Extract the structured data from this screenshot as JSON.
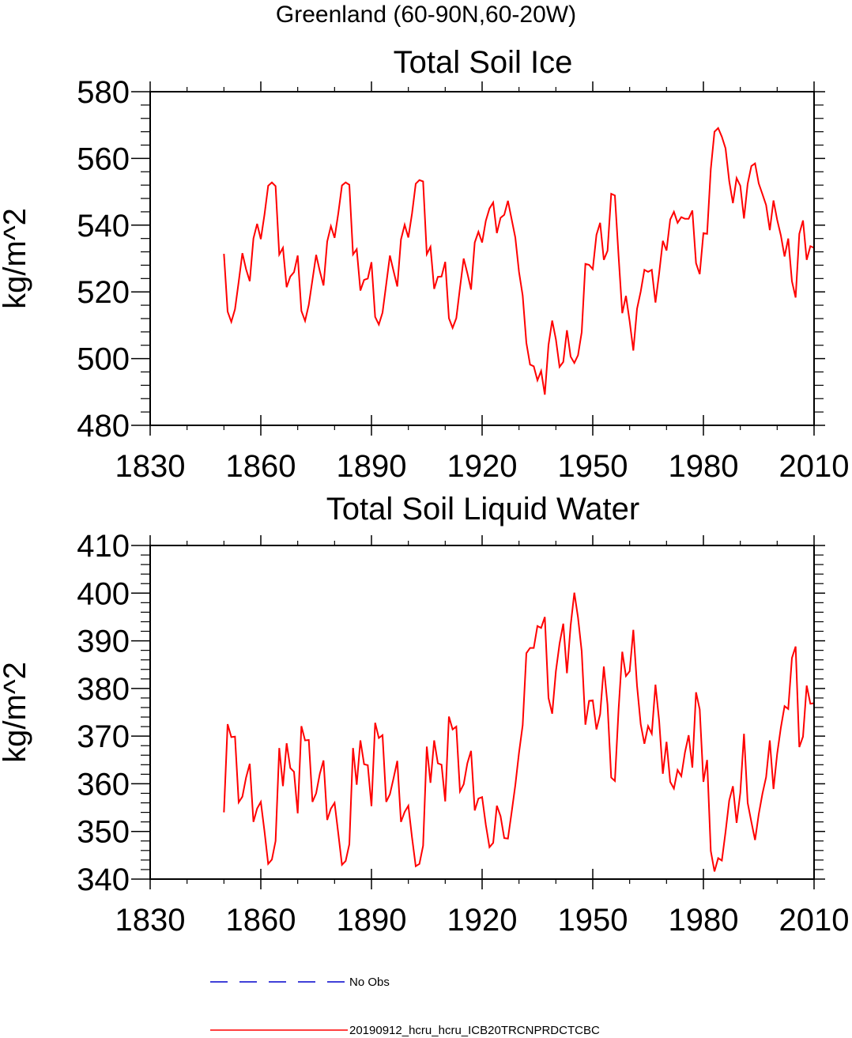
{
  "figure": {
    "title": "Greenland (60-90N,60-20W)"
  },
  "colors": {
    "series_line": "#ff0000",
    "obs_line": "#0000cc",
    "axis": "#000000"
  },
  "legend": {
    "entries": [
      {
        "label": "No Obs",
        "style": "dashed",
        "color": "#0000cc"
      },
      {
        "label": "20190912_hcru_hcru_ICB20TRCNPRDCTCBC",
        "style": "solid",
        "color": "#ff0000"
      }
    ]
  },
  "chart_data": [
    {
      "type": "line",
      "title": "Total Soil Ice",
      "xlabel": "",
      "ylabel": "kg/m^2",
      "xlim": [
        1830,
        2010
      ],
      "ylim": [
        480,
        580
      ],
      "xticks": [
        1830,
        1860,
        1890,
        1920,
        1950,
        1980,
        2010
      ],
      "xtick_labels": [
        "1830",
        "1860",
        "1890",
        "1920",
        "1950",
        "1980",
        "2010"
      ],
      "yticks": [
        480,
        500,
        520,
        540,
        560,
        580
      ],
      "ytick_labels": [
        "480",
        "500",
        "520",
        "540",
        "560",
        "580"
      ],
      "x_start": 1850,
      "series": [
        {
          "name": "20190912_hcru_hcru_ICB20TRCNPRDCTCBC",
          "values": [
            531.4,
            514.1,
            511.0,
            514.8,
            523.0,
            531.6,
            526.8,
            523.2,
            536.0,
            540.4,
            535.8,
            543.2,
            551.8,
            552.8,
            551.7,
            531.2,
            533.2,
            521.4,
            524.6,
            525.9,
            530.9,
            514.3,
            511.3,
            516.1,
            523.6,
            531.1,
            526.2,
            521.9,
            535.1,
            539.7,
            536.2,
            543.5,
            551.9,
            552.8,
            552.1,
            531.2,
            532.8,
            520.4,
            523.6,
            524.0,
            528.9,
            512.5,
            510.2,
            513.8,
            522.3,
            530.9,
            526.2,
            521.6,
            535.7,
            540.1,
            536.3,
            543.5,
            552.4,
            553.5,
            553.1,
            531.3,
            533.5,
            520.9,
            524.5,
            524.6,
            529.0,
            512.1,
            509.2,
            512.1,
            521.2,
            530.0,
            525.6,
            520.7,
            534.8,
            538.0,
            534.8,
            541.3,
            545.0,
            546.8,
            537.6,
            542.2,
            543.1,
            547.3,
            541.8,
            536.3,
            526.0,
            518.9,
            504.7,
            498.2,
            497.7,
            493.5,
            496.3,
            489.2,
            504.1,
            511.4,
            505.8,
            497.5,
            499.0,
            508.5,
            500.6,
            498.7,
            501.0,
            507.9,
            528.4,
            528.1,
            526.8,
            537.1,
            540.7,
            529.6,
            532.3,
            549.4,
            548.9,
            530.7,
            513.6,
            518.8,
            511.2,
            502.4,
            514.9,
            520.1,
            526.6,
            526.0,
            526.6,
            516.8,
            525.6,
            535.3,
            532.4,
            541.7,
            544.0,
            540.7,
            542.4,
            541.9,
            541.9,
            544.4,
            528.6,
            525.3,
            537.6,
            537.4,
            556.8,
            568.0,
            569.1,
            566.5,
            563.0,
            553.2,
            546.6,
            554.1,
            551.8,
            542.0,
            552.4,
            557.7,
            558.5,
            552.5,
            549.3,
            546.0,
            538.5,
            547.4,
            541.6,
            536.9,
            530.6,
            536.0,
            523.2,
            518.3,
            537.4,
            541.4,
            529.6,
            533.7,
            533.2
          ]
        }
      ]
    },
    {
      "type": "line",
      "title": "Total Soil Liquid Water",
      "xlabel": "",
      "ylabel": "kg/m^2",
      "xlim": [
        1830,
        2010
      ],
      "ylim": [
        340,
        410
      ],
      "xticks": [
        1830,
        1860,
        1890,
        1920,
        1950,
        1980,
        2010
      ],
      "xtick_labels": [
        "1830",
        "1860",
        "1890",
        "1920",
        "1950",
        "1980",
        "2010"
      ],
      "yticks": [
        340,
        350,
        360,
        370,
        380,
        390,
        400,
        410
      ],
      "ytick_labels": [
        "340",
        "350",
        "360",
        "370",
        "380",
        "390",
        "400",
        "410"
      ],
      "x_start": 1850,
      "series": [
        {
          "name": "20190912_hcru_hcru_ICB20TRCNPRDCTCBC",
          "values": [
            354.0,
            372.5,
            369.8,
            369.9,
            356.1,
            357.3,
            361.3,
            364.2,
            352.0,
            354.8,
            356.2,
            350.0,
            343.2,
            344.1,
            348.0,
            367.5,
            359.5,
            368.5,
            363.3,
            362.5,
            353.8,
            372.1,
            369.1,
            369.2,
            356.2,
            358.0,
            362.1,
            364.9,
            352.4,
            354.8,
            356.0,
            349.6,
            343.0,
            343.8,
            347.3,
            367.5,
            359.8,
            369.1,
            364.1,
            363.9,
            355.3,
            372.8,
            369.6,
            370.2,
            356.2,
            357.8,
            361.2,
            364.8,
            352.0,
            354.1,
            355.4,
            348.7,
            342.7,
            343.2,
            347.0,
            367.8,
            360.2,
            369.1,
            364.3,
            364.0,
            356.3,
            374.1,
            371.4,
            372.0,
            358.4,
            359.9,
            364.3,
            366.9,
            354.4,
            356.9,
            357.2,
            351.4,
            346.7,
            347.6,
            355.4,
            353.2,
            348.6,
            348.5,
            354.0,
            359.7,
            366.5,
            372.3,
            387.4,
            388.5,
            388.5,
            393.1,
            392.7,
            395.0,
            378.0,
            374.7,
            383.6,
            389.4,
            393.6,
            383.2,
            393.2,
            400.1,
            394.9,
            387.8,
            372.4,
            377.4,
            377.5,
            371.4,
            374.6,
            384.6,
            376.6,
            361.3,
            360.6,
            375.6,
            387.7,
            382.6,
            383.6,
            392.3,
            380.6,
            372.5,
            368.4,
            372.1,
            370.5,
            380.8,
            373.2,
            362.1,
            368.8,
            360.4,
            359.0,
            362.9,
            361.6,
            366.6,
            370.2,
            363.4,
            379.2,
            375.6,
            360.4,
            365.0,
            345.9,
            341.6,
            344.4,
            343.9,
            349.9,
            356.5,
            359.5,
            351.8,
            358.1,
            370.5,
            356.0,
            352.0,
            348.2,
            353.6,
            357.9,
            361.4,
            369.1,
            358.9,
            366.3,
            371.8,
            376.3,
            375.7,
            386.4,
            388.8,
            367.7,
            369.9,
            380.6,
            376.8,
            376.9
          ]
        }
      ]
    }
  ]
}
